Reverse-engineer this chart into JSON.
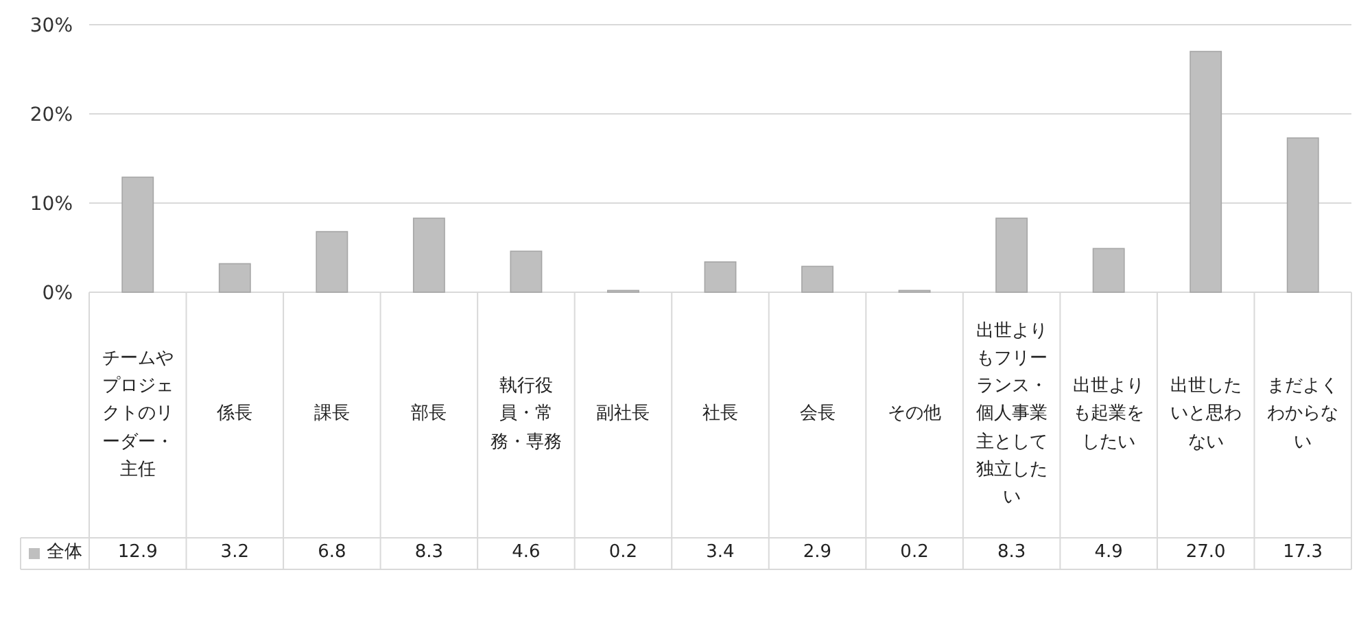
{
  "chart_data": {
    "type": "bar",
    "categories": [
      "チームやプロジェクトのリーダー・主任",
      "係長",
      "課長",
      "部長",
      "執行役員・常務・専務",
      "副社長",
      "社長",
      "会長",
      "その他",
      "出世よりもフリーランス・個人事業主として独立したい",
      "出世よりも起業をしたい",
      "出世したいと思わない",
      "まだよくわからない"
    ],
    "series": [
      {
        "name": "全体",
        "color": "#bfbfbf",
        "values": [
          12.9,
          3.2,
          6.8,
          8.3,
          4.6,
          0.2,
          3.4,
          2.9,
          0.2,
          8.3,
          4.9,
          27.0,
          17.3
        ],
        "value_labels": [
          "12.9",
          "3.2",
          "6.8",
          "8.3",
          "4.6",
          "0.2",
          "3.4",
          "2.9",
          "0.2",
          "8.3",
          "4.9",
          "27.0",
          "17.3"
        ]
      }
    ],
    "ylim": [
      0,
      30
    ],
    "yticks": [
      {
        "value": 0,
        "label": "0%"
      },
      {
        "value": 10,
        "label": "10%"
      },
      {
        "value": 20,
        "label": "20%"
      },
      {
        "value": 30,
        "label": "30%"
      }
    ],
    "grid": "y",
    "legend": "bottom"
  }
}
